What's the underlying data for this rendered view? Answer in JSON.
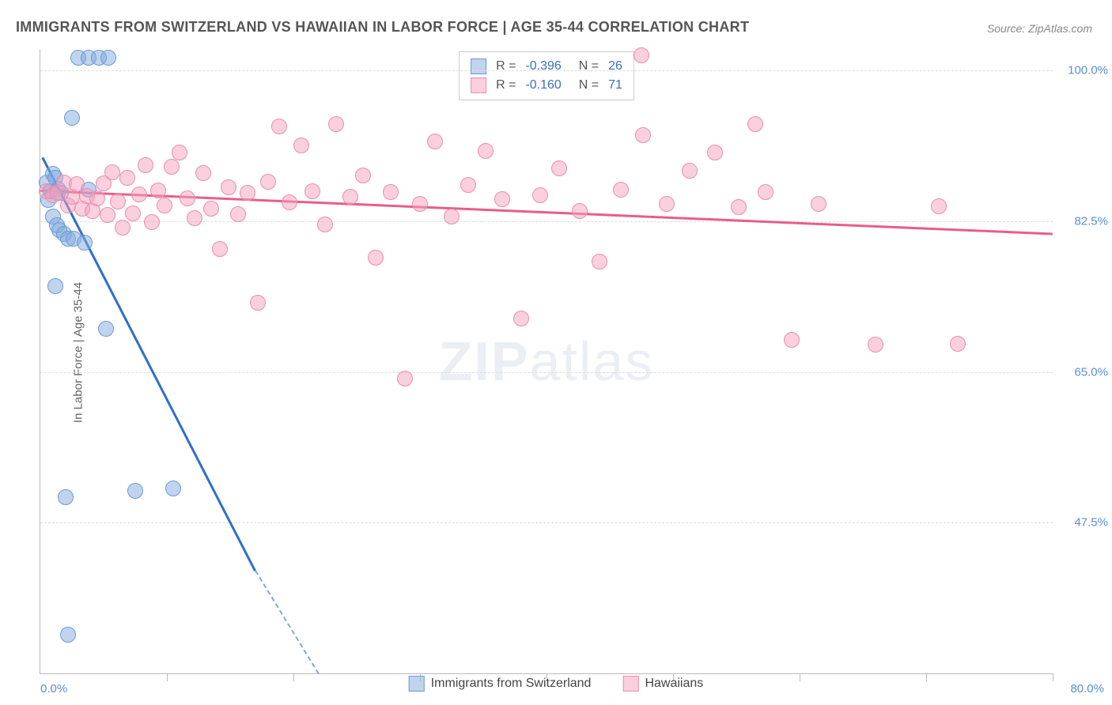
{
  "title": "IMMIGRANTS FROM SWITZERLAND VS HAWAIIAN IN LABOR FORCE | AGE 35-44 CORRELATION CHART",
  "source": "Source: ZipAtlas.com",
  "y_axis_label": "In Labor Force | Age 35-44",
  "watermark_part1": "ZIP",
  "watermark_part2": "atlas",
  "chart": {
    "type": "scatter",
    "xlim": [
      0,
      80
    ],
    "ylim": [
      30,
      102.5
    ],
    "background_color": "#ffffff",
    "grid_color": "#dddddd",
    "grid_dash": "dashed",
    "x_tick_positions": [
      10,
      20,
      30,
      40,
      50,
      60,
      70,
      80
    ],
    "x_tick_label_left": "0.0%",
    "x_tick_label_right": "80.0%",
    "y_ticks": [
      {
        "pos": 47.5,
        "label": "47.5%"
      },
      {
        "pos": 65.0,
        "label": "65.0%"
      },
      {
        "pos": 82.5,
        "label": "82.5%"
      },
      {
        "pos": 100.0,
        "label": "100.0%"
      }
    ],
    "marker_radius": 9,
    "marker_opacity": 0.55,
    "series": [
      {
        "name": "Immigrants from Switzerland",
        "color_fill": "rgba(130,170,220,0.5)",
        "color_stroke": "#6a9bd8",
        "trend_color": "#2e6fc9",
        "trend_line_width": 2.5,
        "R": "-0.396",
        "N": "26",
        "trend": {
          "x1": 0.2,
          "y1": 90,
          "x2": 17,
          "y2": 42,
          "ext_x2": 22,
          "ext_y2": 30
        },
        "points": [
          [
            0.5,
            87
          ],
          [
            0.6,
            85
          ],
          [
            0.8,
            86
          ],
          [
            1.0,
            88
          ],
          [
            1.2,
            87.5
          ],
          [
            1.4,
            86.3
          ],
          [
            1.6,
            85.8
          ],
          [
            1.0,
            83
          ],
          [
            1.3,
            82
          ],
          [
            1.5,
            81.5
          ],
          [
            1.9,
            81
          ],
          [
            2.2,
            80.5
          ],
          [
            2.6,
            80.5
          ],
          [
            3.5,
            80
          ],
          [
            3.0,
            101.5
          ],
          [
            3.8,
            101.5
          ],
          [
            4.6,
            101.5
          ],
          [
            5.4,
            101.5
          ],
          [
            2.5,
            94.5
          ],
          [
            1.2,
            75
          ],
          [
            5.2,
            70
          ],
          [
            2.0,
            50.5
          ],
          [
            7.5,
            51.2
          ],
          [
            10.5,
            51.5
          ],
          [
            2.2,
            34.5
          ],
          [
            3.8,
            86.2
          ]
        ]
      },
      {
        "name": "Hawaiians",
        "color_fill": "rgba(245,160,190,0.5)",
        "color_stroke": "#e98fb0",
        "trend_color": "#e85d8a",
        "trend_line_width": 2.5,
        "R": "-0.160",
        "N": "71",
        "trend": {
          "x1": 0,
          "y1": 86.2,
          "x2": 80,
          "y2": 81.2
        },
        "points": [
          [
            0.5,
            86
          ],
          [
            1,
            85.5
          ],
          [
            1.4,
            85.8
          ],
          [
            1.9,
            87
          ],
          [
            2.2,
            84.3
          ],
          [
            2.5,
            85.3
          ],
          [
            2.9,
            86.8
          ],
          [
            3.3,
            84
          ],
          [
            3.7,
            85.4
          ],
          [
            4.1,
            83.7
          ],
          [
            4.5,
            85.2
          ],
          [
            5,
            86.9
          ],
          [
            5.3,
            83.2
          ],
          [
            5.7,
            88.2
          ],
          [
            6.1,
            84.8
          ],
          [
            6.5,
            81.8
          ],
          [
            6.9,
            87.5
          ],
          [
            7.3,
            83.4
          ],
          [
            7.8,
            85.6
          ],
          [
            8.3,
            89
          ],
          [
            8.8,
            82.4
          ],
          [
            9.3,
            86.1
          ],
          [
            9.8,
            84.3
          ],
          [
            10.4,
            88.8
          ],
          [
            11,
            90.5
          ],
          [
            11.6,
            85.2
          ],
          [
            12.2,
            82.9
          ],
          [
            12.9,
            88.1
          ],
          [
            13.5,
            84
          ],
          [
            14.2,
            79.3
          ],
          [
            14.9,
            86.4
          ],
          [
            15.6,
            83.3
          ],
          [
            16.4,
            85.8
          ],
          [
            17.2,
            73
          ],
          [
            18,
            87.1
          ],
          [
            18.9,
            93.5
          ],
          [
            19.7,
            84.7
          ],
          [
            20.6,
            91.3
          ],
          [
            21.5,
            86
          ],
          [
            22.5,
            82.1
          ],
          [
            23.4,
            93.8
          ],
          [
            24.5,
            85.3
          ],
          [
            25.5,
            87.8
          ],
          [
            26.5,
            78.3
          ],
          [
            27.7,
            85.9
          ],
          [
            28.8,
            64.2
          ],
          [
            30,
            84.5
          ],
          [
            31.2,
            91.8
          ],
          [
            32.5,
            83
          ],
          [
            33.8,
            86.7
          ],
          [
            35.2,
            90.7
          ],
          [
            36.5,
            85.1
          ],
          [
            38,
            71.2
          ],
          [
            39.5,
            85.5
          ],
          [
            41,
            88.6
          ],
          [
            42.6,
            83.7
          ],
          [
            44.2,
            77.8
          ],
          [
            45.9,
            86.2
          ],
          [
            47.6,
            92.5
          ],
          [
            49.5,
            84.5
          ],
          [
            51.3,
            88.4
          ],
          [
            53.3,
            90.5
          ],
          [
            55.2,
            84.1
          ],
          [
            57.3,
            85.9
          ],
          [
            59.4,
            68.7
          ],
          [
            47.5,
            101.8
          ],
          [
            61.5,
            84.5
          ],
          [
            56.5,
            93.8
          ],
          [
            66,
            68.2
          ],
          [
            71,
            84.2
          ],
          [
            72.5,
            68.3
          ]
        ]
      }
    ],
    "legend_top": {
      "R_label": "R =",
      "N_label": "N =",
      "text_color": "#555",
      "value_color": "#3a6fc0"
    },
    "legend_bottom": [
      {
        "swatch_fill": "rgba(130,170,220,0.5)",
        "swatch_stroke": "#6a9bd8",
        "label": "Immigrants from Switzerland"
      },
      {
        "swatch_fill": "rgba(245,160,190,0.5)",
        "swatch_stroke": "#e98fb0",
        "label": "Hawaiians"
      }
    ]
  }
}
